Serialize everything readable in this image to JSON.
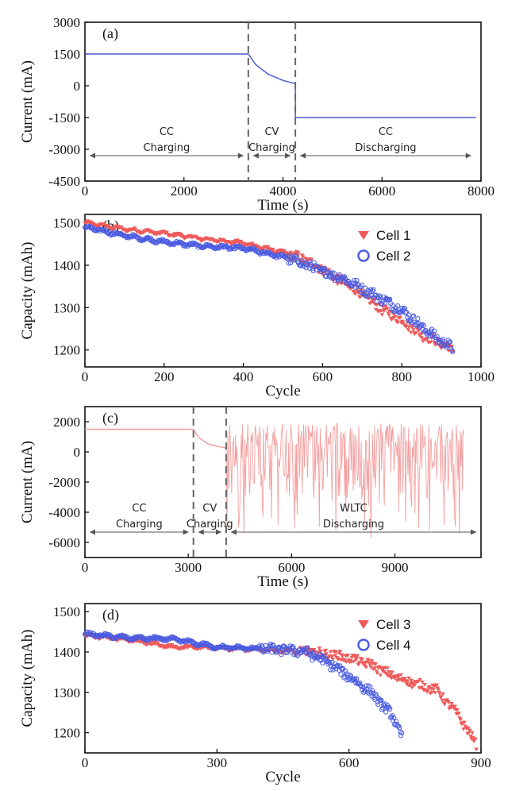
{
  "colors": {
    "blue_line": "#4a5bd6",
    "pink_line": "#f29a9a",
    "red_marker": "#ef5a5a",
    "blue_marker": "#4a5be0",
    "dash": "#666666",
    "arrow": "#555555"
  },
  "chart_data": [
    {
      "type": "line",
      "panel": "(a)",
      "xlabel": "Time (s)",
      "ylabel": "Current (mA)",
      "xlim": [
        0,
        8000
      ],
      "ylim": [
        -4500,
        3000
      ],
      "xticks": [
        0,
        2000,
        4000,
        6000,
        8000
      ],
      "yticks": [
        3000,
        1500,
        0,
        -1500,
        -3000,
        -4500
      ],
      "series": [
        {
          "x": [
            0,
            3300,
            3450,
            3700,
            4000,
            4250,
            4251,
            7900
          ],
          "values": [
            1500,
            1500,
            1000,
            550,
            250,
            100,
            -1500,
            -1500
          ]
        }
      ],
      "phases": [
        {
          "line1": "CC",
          "line2": "Charging",
          "x_from": 0,
          "x_to": 3300
        },
        {
          "line1": "CV",
          "line2": "Charging",
          "x_from": 3300,
          "x_to": 4250
        },
        {
          "line1": "CC",
          "line2": "Discharging",
          "x_from": 4250,
          "x_to": 7900
        }
      ],
      "dividers": [
        3300,
        4250
      ]
    },
    {
      "type": "scatter",
      "panel": "(b)",
      "xlabel": "Cycle",
      "ylabel": "Capacity (mAh)",
      "xlim": [
        0,
        1000
      ],
      "ylim": [
        1160,
        1520
      ],
      "xticks": [
        0,
        200,
        400,
        600,
        800,
        1000
      ],
      "yticks": [
        1500,
        1400,
        1300,
        1200
      ],
      "legend_position": "top-right",
      "series": [
        {
          "name": "Cell 1",
          "marker": "triangle-down",
          "x": [
            0,
            100,
            200,
            300,
            400,
            500,
            550,
            600,
            650,
            700,
            750,
            800,
            850,
            900,
            930
          ],
          "values": [
            1500,
            1485,
            1475,
            1462,
            1452,
            1430,
            1415,
            1390,
            1360,
            1330,
            1295,
            1270,
            1235,
            1215,
            1200
          ]
        },
        {
          "name": "Cell 2",
          "marker": "circle",
          "x": [
            0,
            100,
            200,
            300,
            400,
            500,
            550,
            600,
            650,
            700,
            750,
            800,
            850,
            900,
            930
          ],
          "values": [
            1490,
            1470,
            1455,
            1445,
            1440,
            1420,
            1405,
            1385,
            1370,
            1345,
            1320,
            1295,
            1255,
            1220,
            1205
          ]
        }
      ]
    },
    {
      "type": "line",
      "panel": "(c)",
      "xlabel": "Time (s)",
      "ylabel": "Current (mA)",
      "xlim": [
        0,
        11500
      ],
      "ylim": [
        -7000,
        3000
      ],
      "xticks": [
        0,
        3000,
        6000,
        9000
      ],
      "yticks": [
        2000,
        0,
        -2000,
        -4000,
        -6000
      ],
      "series": [
        {
          "x": [
            0,
            3150,
            3300,
            3600,
            4000,
            4100
          ],
          "values": [
            1500,
            1500,
            950,
            500,
            300,
            250
          ]
        }
      ],
      "wltc_region": [
        4100,
        11000
      ],
      "phases": [
        {
          "line1": "CC",
          "line2": "Charging",
          "x_from": 0,
          "x_to": 3150
        },
        {
          "line1": "CV",
          "line2": "Charging",
          "x_from": 3150,
          "x_to": 4100
        },
        {
          "line1": "WLTC",
          "line2": "Discharging",
          "x_from": 4100,
          "x_to": 11500
        }
      ],
      "dividers": [
        3150,
        4100
      ]
    },
    {
      "type": "scatter",
      "panel": "(d)",
      "xlabel": "Cycle",
      "ylabel": "Capacity (mAh)",
      "xlim": [
        0,
        900
      ],
      "ylim": [
        1150,
        1520
      ],
      "xticks": [
        0,
        300,
        600,
        900
      ],
      "yticks": [
        1500,
        1400,
        1300,
        1200
      ],
      "legend_position": "top-right",
      "series": [
        {
          "name": "Cell 3",
          "marker": "triangle-down",
          "x": [
            0,
            100,
            200,
            300,
            400,
            500,
            550,
            600,
            650,
            700,
            750,
            800,
            850,
            890
          ],
          "values": [
            1440,
            1430,
            1412,
            1410,
            1405,
            1400,
            1395,
            1385,
            1368,
            1340,
            1322,
            1305,
            1240,
            1170
          ]
        },
        {
          "name": "Cell 4",
          "marker": "circle",
          "x": [
            0,
            100,
            200,
            300,
            400,
            500,
            550,
            600,
            650,
            700,
            720
          ],
          "values": [
            1445,
            1435,
            1432,
            1412,
            1408,
            1402,
            1375,
            1340,
            1300,
            1240,
            1190
          ]
        }
      ]
    }
  ]
}
